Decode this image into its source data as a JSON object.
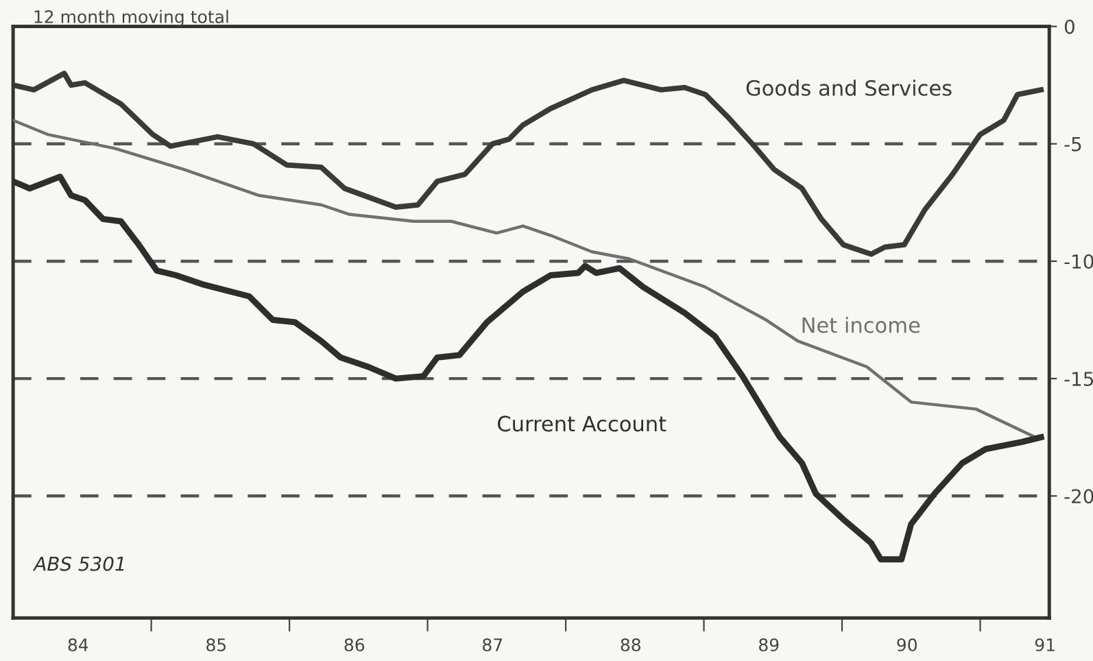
{
  "chart_data": {
    "type": "line",
    "title": "12 month moving total",
    "annotations": [
      "ABS 5301"
    ],
    "xlim": [
      83.53,
      91.03
    ],
    "xticks": [
      84,
      85,
      86,
      87,
      88,
      89,
      90,
      91,
      {
        "value": 84.53,
        "label": null
      },
      {
        "value": 85.53,
        "label": null
      },
      {
        "value": 86.53,
        "label": null
      },
      {
        "value": 87.53,
        "label": null
      },
      {
        "value": 88.53,
        "label": null
      },
      {
        "value": 89.53,
        "label": null
      },
      {
        "value": 90.53,
        "label": null
      }
    ],
    "ylim": [
      -25.2,
      0
    ],
    "yticks": [
      0,
      -5,
      -10,
      -15,
      -20
    ],
    "grid": "y",
    "legend": false,
    "series": [
      {
        "name": "Goods and Services",
        "color": "#3a3a3a",
        "x": [
          83.53,
          83.68,
          83.9,
          83.95,
          84.05,
          84.31,
          84.54,
          84.67,
          85.01,
          85.27,
          85.51,
          85.76,
          85.93,
          86.3,
          86.46,
          86.6,
          86.8,
          87.0,
          87.12,
          87.22,
          87.42,
          87.72,
          87.95,
          88.22,
          88.39,
          88.54,
          88.71,
          88.88,
          89.04,
          89.24,
          89.38,
          89.54,
          89.74,
          89.84,
          89.98,
          90.13,
          90.33,
          90.53,
          90.7,
          90.8,
          90.97
        ],
        "values": [
          -2.5,
          -2.7,
          -2.0,
          -2.5,
          -2.4,
          -3.3,
          -4.6,
          -5.1,
          -4.7,
          -5.0,
          -5.9,
          -6.0,
          -6.9,
          -7.7,
          -7.6,
          -6.6,
          -6.3,
          -5.0,
          -4.8,
          -4.2,
          -3.5,
          -2.7,
          -2.3,
          -2.7,
          -2.6,
          -2.9,
          -3.9,
          -5.0,
          -6.1,
          -6.9,
          -8.2,
          -9.3,
          -9.7,
          -9.4,
          -9.3,
          -7.8,
          -6.3,
          -4.6,
          -4.0,
          -2.9,
          -2.7
        ]
      },
      {
        "name": "Net income",
        "color": "#707070",
        "x": [
          83.53,
          83.78,
          84.27,
          84.77,
          85.31,
          85.76,
          85.96,
          86.43,
          86.7,
          87.03,
          87.22,
          87.42,
          87.72,
          87.99,
          88.54,
          88.98,
          89.21,
          89.71,
          90.03,
          90.5,
          90.93
        ],
        "values": [
          -4.0,
          -4.6,
          -5.2,
          -6.1,
          -7.2,
          -7.6,
          -8.0,
          -8.3,
          -8.3,
          -8.8,
          -8.5,
          -8.9,
          -9.6,
          -9.9,
          -11.1,
          -12.5,
          -13.4,
          -14.5,
          -16.0,
          -16.3,
          -17.5
        ]
      },
      {
        "name": "Current Account",
        "color": "#2e2e2e",
        "x": [
          83.53,
          83.65,
          83.87,
          83.95,
          84.05,
          84.18,
          84.31,
          84.44,
          84.57,
          84.71,
          84.91,
          85.24,
          85.41,
          85.57,
          85.76,
          85.9,
          86.1,
          86.3,
          86.5,
          86.6,
          86.76,
          86.96,
          87.22,
          87.42,
          87.62,
          87.67,
          87.75,
          87.92,
          88.09,
          88.39,
          88.61,
          88.81,
          89.08,
          89.24,
          89.34,
          89.54,
          89.74,
          89.81,
          89.96,
          90.03,
          90.2,
          90.4,
          90.57,
          90.83,
          90.97
        ],
        "values": [
          -6.6,
          -6.9,
          -6.4,
          -7.2,
          -7.4,
          -8.2,
          -8.3,
          -9.3,
          -10.4,
          -10.6,
          -11.0,
          -11.5,
          -12.5,
          -12.6,
          -13.4,
          -14.1,
          -14.5,
          -15.0,
          -14.9,
          -14.1,
          -14.0,
          -12.6,
          -11.3,
          -10.6,
          -10.5,
          -10.2,
          -10.5,
          -10.3,
          -11.1,
          -12.2,
          -13.2,
          -14.9,
          -17.5,
          -18.6,
          -19.9,
          -21.0,
          -22.0,
          -22.7,
          -22.7,
          -21.2,
          -19.9,
          -18.6,
          -18.0,
          -17.7,
          -17.5
        ]
      }
    ]
  }
}
